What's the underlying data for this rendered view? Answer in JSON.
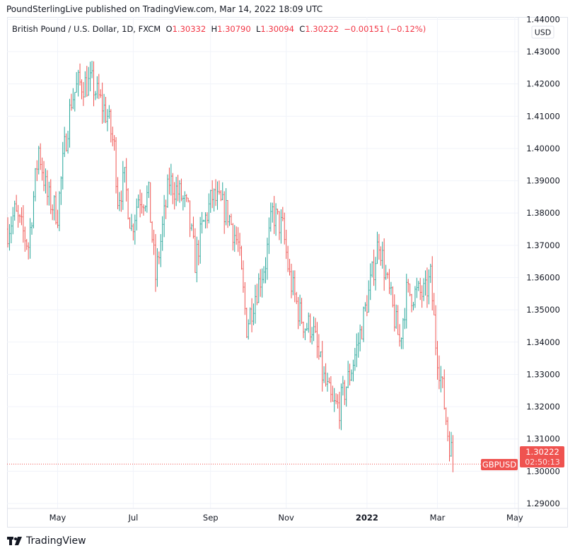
{
  "header": {
    "published": "PoundSterlingLive published on TradingView.com, Mar 14, 2022 18:09 UTC"
  },
  "legend": {
    "symbol": "British Pound / U.S. Dollar, 1D, FXCM",
    "o_label": "O",
    "o": "1.30332",
    "h_label": "H",
    "h": "1.30790",
    "l_label": "L",
    "l": "1.30094",
    "c_label": "C",
    "c": "1.30222",
    "change": "−0.00151 (−0.12%)"
  },
  "brand": "TradingView",
  "colors": {
    "up": "#26a69a",
    "down": "#ef5350",
    "grid": "#f0f3fa",
    "label": "#ef5350"
  },
  "chart_data": {
    "type": "ohlc",
    "title": "British Pound / U.S. Dollar, 1D, FXCM",
    "currency": "USD",
    "ylim": [
      1.29,
      1.44
    ],
    "yticks": [
      "1.29000",
      "1.30000",
      "1.31000",
      "1.32000",
      "1.33000",
      "1.34000",
      "1.35000",
      "1.36000",
      "1.37000",
      "1.38000",
      "1.39000",
      "1.40000",
      "1.41000",
      "1.42000",
      "1.43000",
      "1.44000"
    ],
    "xticks": [
      {
        "label": "May",
        "bar": 29
      },
      {
        "label": "Jul",
        "bar": 73
      },
      {
        "label": "Sep",
        "bar": 118
      },
      {
        "label": "Nov",
        "bar": 162
      },
      {
        "label": "2022",
        "bar": 209,
        "bold": true
      },
      {
        "label": "Mar",
        "bar": 250
      },
      {
        "label": "May",
        "bar": 295
      }
    ],
    "bar_count": 260,
    "keypoints": [
      [
        0,
        1.375
      ],
      [
        4,
        1.38
      ],
      [
        12,
        1.37
      ],
      [
        18,
        1.4
      ],
      [
        23,
        1.385
      ],
      [
        29,
        1.38
      ],
      [
        33,
        1.4
      ],
      [
        37,
        1.415
      ],
      [
        41,
        1.42
      ],
      [
        49,
        1.42
      ],
      [
        58,
        1.41
      ],
      [
        62,
        1.4
      ],
      [
        64,
        1.385
      ],
      [
        68,
        1.39
      ],
      [
        72,
        1.375
      ],
      [
        76,
        1.385
      ],
      [
        82,
        1.385
      ],
      [
        86,
        1.36
      ],
      [
        90,
        1.375
      ],
      [
        94,
        1.39
      ],
      [
        101,
        1.385
      ],
      [
        105,
        1.38
      ],
      [
        109,
        1.365
      ],
      [
        113,
        1.375
      ],
      [
        119,
        1.385
      ],
      [
        128,
        1.38
      ],
      [
        134,
        1.37
      ],
      [
        139,
        1.345
      ],
      [
        144,
        1.355
      ],
      [
        150,
        1.365
      ],
      [
        154,
        1.38
      ],
      [
        160,
        1.375
      ],
      [
        164,
        1.36
      ],
      [
        169,
        1.35
      ],
      [
        173,
        1.345
      ],
      [
        177,
        1.345
      ],
      [
        183,
        1.33
      ],
      [
        189,
        1.32
      ],
      [
        193,
        1.32
      ],
      [
        199,
        1.33
      ],
      [
        204,
        1.34
      ],
      [
        210,
        1.355
      ],
      [
        216,
        1.372
      ],
      [
        220,
        1.36
      ],
      [
        224,
        1.35
      ],
      [
        228,
        1.34
      ],
      [
        232,
        1.355
      ],
      [
        236,
        1.355
      ],
      [
        243,
        1.355
      ],
      [
        246,
        1.36
      ],
      [
        249,
        1.34
      ],
      [
        253,
        1.325
      ],
      [
        256,
        1.312
      ],
      [
        259,
        1.3033
      ]
    ],
    "last": {
      "symbol": "GBPUSD",
      "price": "1.30222",
      "countdown": "02:50:13"
    }
  }
}
